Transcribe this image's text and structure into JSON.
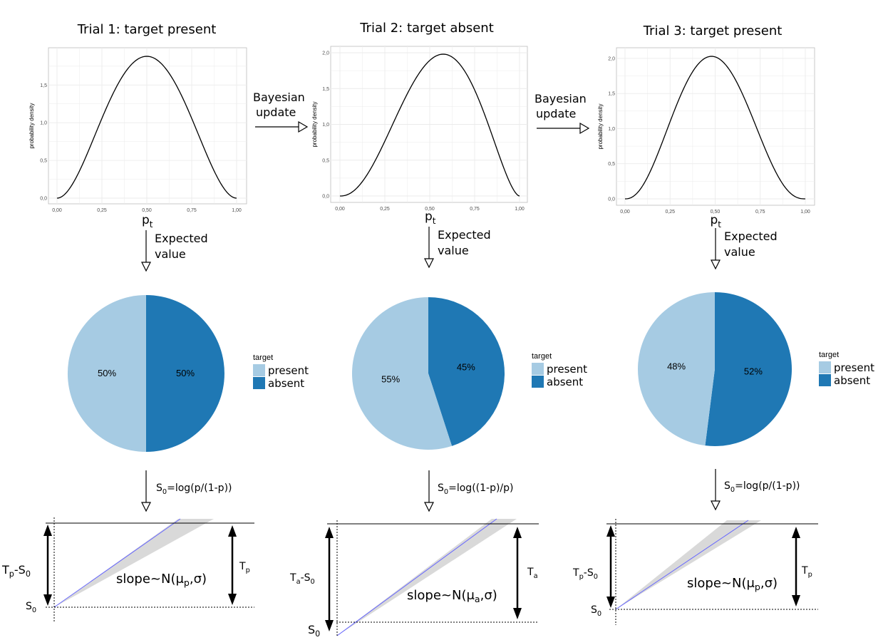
{
  "colors": {
    "present": "#a6cbe3",
    "absent": "#1f78b4",
    "band": "#d9d9d9",
    "mean_line": "#6666ff"
  },
  "arrows": {
    "bayes_line1": "Bayesian",
    "bayes_line2": "update",
    "ev_line1": "Expected",
    "ev_line2": "value"
  },
  "legend": {
    "title": "target",
    "present": "present",
    "absent": "absent"
  },
  "axis": {
    "ylabel": "probability density",
    "xlabel_main": "p",
    "xlabel_sub": "t"
  },
  "panels": [
    {
      "title": "Trial 1: target present",
      "formula_parts": [
        "S",
        "0",
        "=log(p/(1-p))"
      ],
      "threshold": [
        "T",
        "p"
      ],
      "diff": [
        "T",
        "p",
        "-S",
        "0"
      ],
      "start": [
        "S",
        "0"
      ],
      "slope": [
        "slope~N(μ",
        "p",
        ",σ)"
      ]
    },
    {
      "title": "Trial 2: target absent",
      "formula_parts": [
        "S",
        "0",
        "=log((1-p)/p)"
      ],
      "threshold": [
        "T",
        "a"
      ],
      "diff": [
        "T",
        "a",
        "-S",
        "0"
      ],
      "start": [
        "S",
        "0"
      ],
      "slope": [
        "slope~N(μ",
        "a",
        ",σ)"
      ]
    },
    {
      "title": "Trial 3: target present",
      "formula_parts": [
        "S",
        "0",
        "=log(p/(1-p))"
      ],
      "threshold": [
        "T",
        "p"
      ],
      "diff": [
        "T",
        "p",
        "-S",
        "0"
      ],
      "start": [
        "S",
        "0"
      ],
      "slope": [
        "slope~N(μ",
        "p",
        ",σ)"
      ]
    }
  ],
  "chart_data": [
    {
      "type": "line",
      "ylabel": "probability density",
      "xlabel": "p_t",
      "xlim": [
        0,
        1
      ],
      "ylim": [
        0,
        1.9
      ],
      "xticks": [
        "0,00",
        "0,25",
        "0,50",
        "0,75",
        "1,00"
      ],
      "yticks": [
        "0,0",
        "0,5",
        "1,0",
        "1,5"
      ],
      "beta_shape": [
        3,
        3
      ]
    },
    {
      "type": "line",
      "ylabel": "probability density",
      "xlabel": "p_t",
      "xlim": [
        0,
        1
      ],
      "ylim": [
        0,
        2.0
      ],
      "xticks": [
        "0,00",
        "0,25",
        "0,50",
        "0,75",
        "1,00"
      ],
      "yticks": [
        "0,0",
        "0,5",
        "1,0",
        "1,5",
        "2,0"
      ],
      "beta_shape": [
        3.3,
        2.7
      ]
    },
    {
      "type": "line",
      "ylabel": "probability density",
      "xlabel": "p_t",
      "xlim": [
        0,
        1
      ],
      "ylim": [
        0,
        2.05
      ],
      "xticks": [
        "0,00",
        "0,25",
        "0,50",
        "0,75",
        "1,00"
      ],
      "yticks": [
        "0,0",
        "0,5",
        "1,0",
        "1,5",
        "2,0"
      ],
      "beta_shape": [
        3.4,
        3.6
      ]
    },
    {
      "type": "pie",
      "legend_title": "target",
      "labels": [
        "present",
        "absent"
      ],
      "values": [
        50,
        50
      ],
      "value_labels": [
        "50%",
        "50%"
      ]
    },
    {
      "type": "pie",
      "legend_title": "target",
      "labels": [
        "present",
        "absent"
      ],
      "values": [
        55,
        45
      ],
      "value_labels": [
        "55%",
        "45%"
      ]
    },
    {
      "type": "pie",
      "legend_title": "target",
      "labels": [
        "present",
        "absent"
      ],
      "values": [
        48,
        52
      ],
      "value_labels": [
        "48%",
        "52%"
      ]
    }
  ]
}
